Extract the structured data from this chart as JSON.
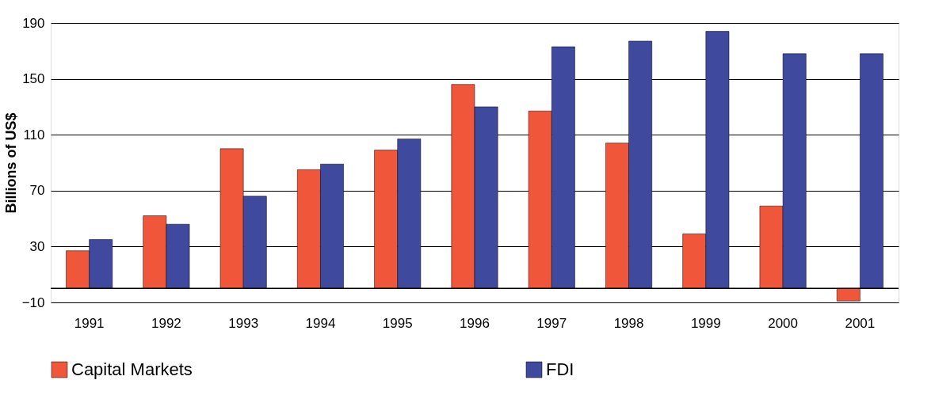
{
  "chart_data": {
    "type": "bar",
    "ylabel": "Billions of US$",
    "categories": [
      "1991",
      "1992",
      "1993",
      "1994",
      "1995",
      "1996",
      "1997",
      "1998",
      "1999",
      "2000",
      "2001"
    ],
    "series": [
      {
        "name": "Capital Markets",
        "color": "#f0573a",
        "values": [
          27,
          52,
          100,
          85,
          99,
          146,
          127,
          104,
          39,
          59,
          -9
        ]
      },
      {
        "name": "FDI",
        "color": "#3f4a9e",
        "values": [
          35,
          46,
          66,
          89,
          107,
          130,
          173,
          177,
          184,
          168,
          168
        ]
      }
    ],
    "ylim": [
      -10,
      190
    ],
    "yticks": [
      -10,
      30,
      70,
      110,
      150,
      190
    ],
    "ref_lines": [
      {
        "axis": "y",
        "value": 0,
        "color": "#000000"
      }
    ],
    "grid": "y",
    "legend": "bottom"
  }
}
